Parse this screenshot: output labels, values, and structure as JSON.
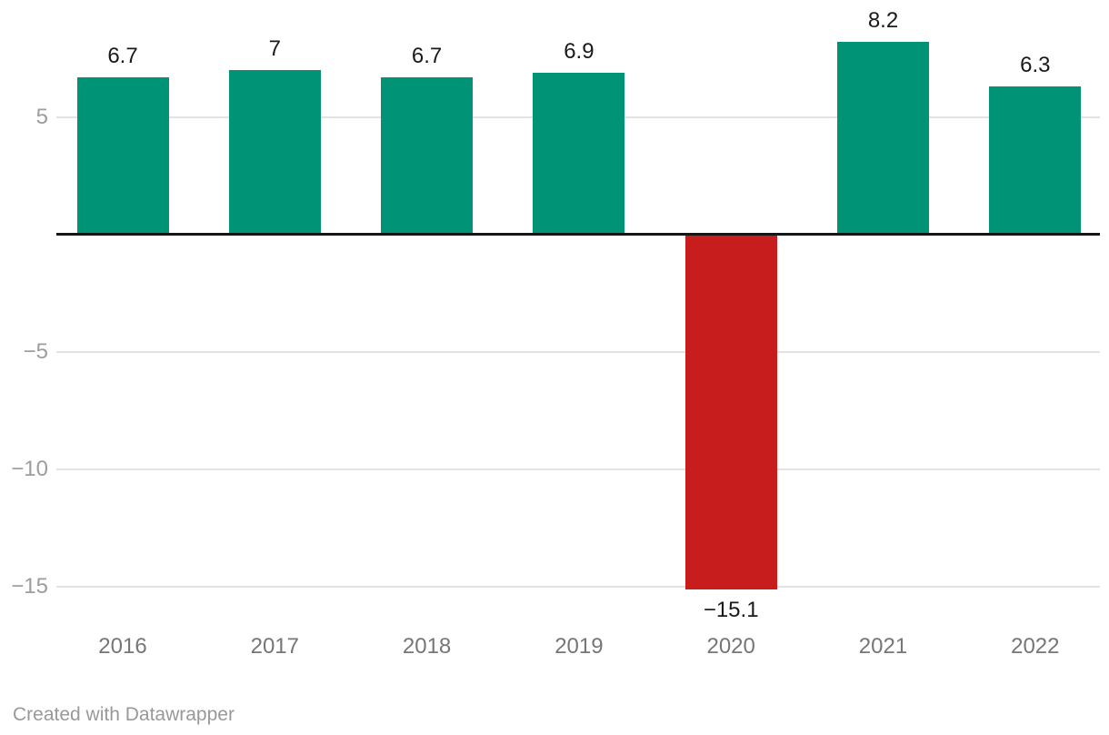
{
  "chart_data": {
    "type": "bar",
    "categories": [
      "2016",
      "2017",
      "2018",
      "2019",
      "2020",
      "2021",
      "2022"
    ],
    "values": [
      6.7,
      7,
      6.7,
      6.9,
      -15.1,
      8.2,
      6.3
    ],
    "value_labels": [
      "6.7",
      "7",
      "6.7",
      "6.9",
      "−15.1",
      "8.2",
      "6.3"
    ],
    "title": "",
    "xlabel": "",
    "ylabel": "",
    "ylim": [
      -16,
      10
    ],
    "yticks": [
      5,
      -5,
      -10,
      -15
    ],
    "ytick_labels": [
      "5",
      "−5",
      "−10",
      "−15"
    ],
    "grid": "horizontal",
    "legend": "none",
    "colors": {
      "positive": "#009376",
      "negative": "#c71e1d",
      "gridline": "#e3e3e3",
      "zero_line": "#161616",
      "value_label": "#1a1a1a",
      "x_tick_label": "#767676",
      "y_tick_label": "#9d9d9d"
    }
  },
  "footer": {
    "credit": "Created with Datawrapper"
  }
}
